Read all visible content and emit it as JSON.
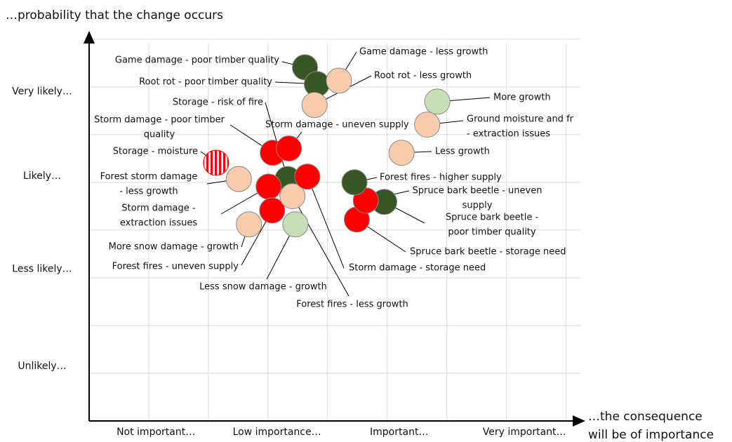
{
  "chart_data": {
    "type": "scatter",
    "y_title": "…probability that the change occurs",
    "x_title": [
      "…the consequence",
      "will be of importance"
    ],
    "xlim": [
      0,
      8.24
    ],
    "ylim": [
      0,
      8.1
    ],
    "xticks": [
      {
        "value": 1.12,
        "label": "Not important…"
      },
      {
        "value": 3.15,
        "label": "Low importance…"
      },
      {
        "value": 5.2,
        "label": "Important…"
      },
      {
        "value": 7.3,
        "label": "Very important…"
      }
    ],
    "yticks": [
      {
        "value": 1.15,
        "label": "Unlikely…"
      },
      {
        "value": 3.18,
        "label": "Less likely…"
      },
      {
        "value": 5.13,
        "label": "Likely…"
      },
      {
        "value": 6.9,
        "label": "Very likely…"
      }
    ],
    "xgrid": [
      1,
      2,
      3,
      4,
      5,
      6,
      7,
      8
    ],
    "ygrid": [
      1,
      2,
      3,
      4,
      5,
      6,
      7,
      8
    ],
    "grid": true,
    "points": [
      {
        "label": [
          "Game damage - poor timber quality"
        ],
        "x": 3.62,
        "y": 7.41,
        "color": "#375623"
      },
      {
        "label": [
          "Root rot - poor timber quality"
        ],
        "x": 3.82,
        "y": 7.06,
        "color": "#375623"
      },
      {
        "label": [
          "Game damage - less growth"
        ],
        "x": 4.19,
        "y": 7.13,
        "color": "#f8cbad"
      },
      {
        "label": [
          "Root rot - less growth"
        ],
        "x": 3.78,
        "y": 6.62,
        "color": "#f8cbad"
      },
      {
        "label": [
          "Storage - risk of fire"
        ],
        "x": 3.33,
        "y": 5.07,
        "color": "#375623"
      },
      {
        "label": [
          "Storm damage - poor timber",
          "quality"
        ],
        "x": 3.08,
        "y": 5.62,
        "color": "#ff0000"
      },
      {
        "label": [
          "Storm damage - uneven supply"
        ],
        "x": 3.35,
        "y": 5.71,
        "color": "#ff0000"
      },
      {
        "label": [
          "Storage - moisture"
        ],
        "x": 2.13,
        "y": 5.41,
        "color": "#ff0000",
        "striped": true
      },
      {
        "label": [
          "Forest storm damage",
          "- less growth"
        ],
        "x": 2.51,
        "y": 5.07,
        "color": "#f8cbad"
      },
      {
        "label": [
          "Storm damage -",
          "extraction issues"
        ],
        "x": 3.01,
        "y": 4.91,
        "color": "#ff0000"
      },
      {
        "label": [
          "More snow damage - growth"
        ],
        "x": 2.68,
        "y": 4.12,
        "color": "#f8cbad"
      },
      {
        "label": [
          "Forest fires - uneven supply"
        ],
        "x": 3.07,
        "y": 4.41,
        "color": "#ff0000"
      },
      {
        "label": [
          "Less snow damage - growth"
        ],
        "x": 3.46,
        "y": 4.12,
        "color": "#c5e0b4"
      },
      {
        "label": [
          "Forest fires - less growth"
        ],
        "x": 3.41,
        "y": 4.71,
        "color": "#f8cbad"
      },
      {
        "label": [
          "Storm damage - storage need"
        ],
        "x": 3.66,
        "y": 5.12,
        "color": "#ff0000"
      },
      {
        "label": [
          "Spruce bark beetle - storage need"
        ],
        "x": 4.49,
        "y": 4.22,
        "color": "#ff0000"
      },
      {
        "label": [
          "Spruce bark beetle -",
          "poor timber quality"
        ],
        "x": 4.95,
        "y": 4.59,
        "color": "#375623"
      },
      {
        "label": [
          "Spruce bark beetle - uneven",
          "supply"
        ],
        "x": 4.64,
        "y": 4.62,
        "color": "#ff0000"
      },
      {
        "label": [
          "Forest fires - higher supply"
        ],
        "x": 4.45,
        "y": 5.0,
        "color": "#375623"
      },
      {
        "label": [
          "Less growth"
        ],
        "x": 5.24,
        "y": 5.62,
        "color": "#f8cbad"
      },
      {
        "label": [
          "Ground moisture and fr",
          "- extraction issues"
        ],
        "x": 5.67,
        "y": 6.21,
        "color": "#f8cbad"
      },
      {
        "label": [
          "More growth"
        ],
        "x": 5.84,
        "y": 6.69,
        "color": "#c5e0b4"
      }
    ]
  }
}
